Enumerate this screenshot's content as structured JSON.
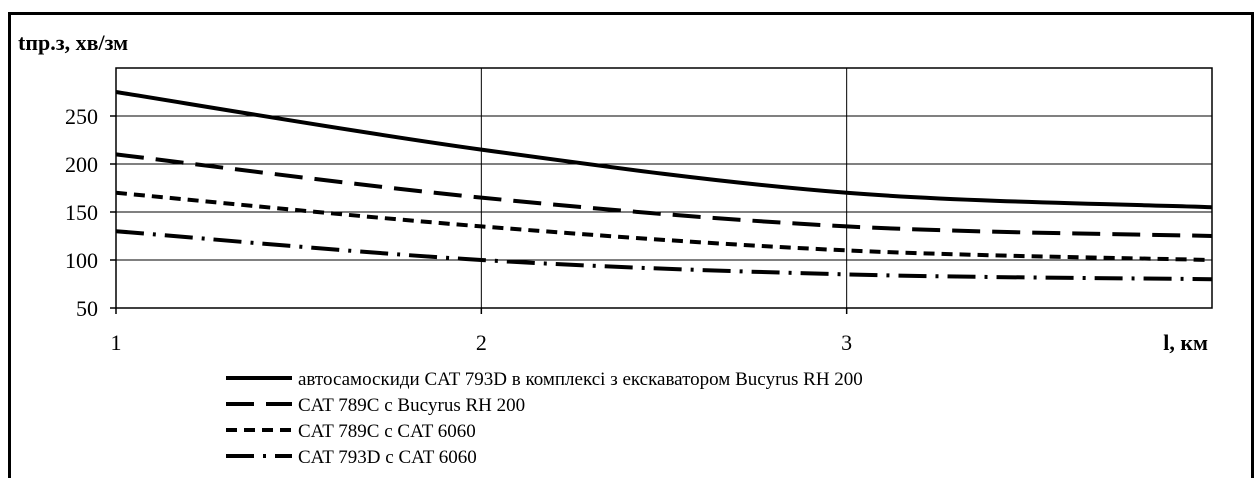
{
  "chart_data": {
    "type": "line",
    "ylabel": "tпр.з, хв/зм",
    "xlabel": "l, км",
    "x": [
      1,
      2,
      3,
      4
    ],
    "xlim": [
      1,
      4
    ],
    "ylim": [
      50,
      300
    ],
    "x_ticks": [
      1,
      2,
      3
    ],
    "y_ticks": [
      50,
      100,
      150,
      200,
      250
    ],
    "grid": true,
    "legend_position": "bottom",
    "series": [
      {
        "name": "автосамоскиди CAT 793D  в комплексі  з екскаватором  Bucyrus RH 200",
        "style": "solid",
        "values": [
          275,
          215,
          170,
          155
        ]
      },
      {
        "name": "CAT 789C с Bucyrus RH 200",
        "style": "long-dash",
        "values": [
          210,
          165,
          135,
          125
        ]
      },
      {
        "name": "CAT 789C  с  CAT 6060",
        "style": "short-dash",
        "values": [
          170,
          135,
          110,
          100
        ]
      },
      {
        "name": "CAT 793D  с CAT 6060",
        "style": "dash-dot",
        "values": [
          130,
          100,
          85,
          80
        ]
      }
    ]
  }
}
